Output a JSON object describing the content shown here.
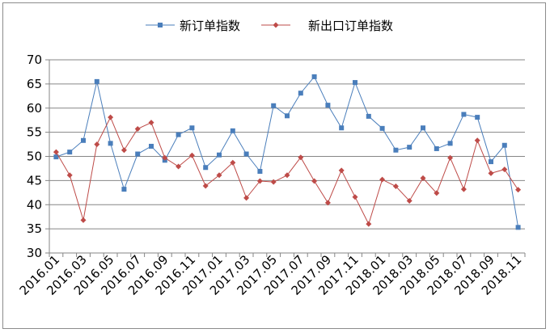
{
  "chart_data": {
    "type": "line",
    "title": "",
    "xlabel": "",
    "ylabel": "",
    "ylim": [
      30,
      70
    ],
    "ytick_step": 5,
    "grid": "horizontal",
    "legend_position": "top",
    "x": [
      "2016.01",
      "2016.02",
      "2016.03",
      "2016.04",
      "2016.05",
      "2016.06",
      "2016.07",
      "2016.08",
      "2016.09",
      "2016.10",
      "2016.11",
      "2016.12",
      "2017.01",
      "2017.02",
      "2017.03",
      "2017.04",
      "2017.05",
      "2017.06",
      "2017.07",
      "2017.08",
      "2017.09",
      "2017.10",
      "2017.11",
      "2017.12",
      "2018.01",
      "2018.02",
      "2018.03",
      "2018.04",
      "2018.05",
      "2018.06",
      "2018.07",
      "2018.08",
      "2018.09",
      "2018.10",
      "2018.11"
    ],
    "x_tick_labels": [
      "2016.01",
      "2016.03",
      "2016.05",
      "2016.07",
      "2016.09",
      "2016.11",
      "2017.01",
      "2017.03",
      "2017.05",
      "2017.07",
      "2017.09",
      "2017.11",
      "2018.01",
      "2018.03",
      "2018.05",
      "2018.07",
      "2018.09",
      "2018.11"
    ],
    "series": [
      {
        "name": "新订单指数",
        "color": "#4a7ebb",
        "marker": "square",
        "values": [
          49.9,
          50.9,
          53.3,
          65.5,
          52.7,
          43.2,
          50.5,
          52.1,
          49.2,
          54.5,
          55.9,
          47.7,
          50.3,
          55.3,
          50.5,
          46.9,
          60.5,
          58.4,
          63.1,
          66.5,
          60.6,
          55.9,
          65.3,
          58.3,
          55.8,
          51.3,
          51.9,
          55.9,
          51.6,
          52.7,
          58.7,
          58.1,
          48.9,
          52.3,
          35.3
        ]
      },
      {
        "name": "新出口订单指数",
        "color": "#be4b48",
        "marker": "diamond",
        "values": [
          50.9,
          46.1,
          36.8,
          52.5,
          58.1,
          51.3,
          55.7,
          57.0,
          49.7,
          47.9,
          50.2,
          43.9,
          46.1,
          48.7,
          41.4,
          44.9,
          44.7,
          46.1,
          49.8,
          44.9,
          40.4,
          47.1,
          41.6,
          36.0,
          45.2,
          43.8,
          40.8,
          45.5,
          42.4,
          49.7,
          43.2,
          53.3,
          46.5,
          47.3,
          43.1
        ]
      }
    ]
  }
}
